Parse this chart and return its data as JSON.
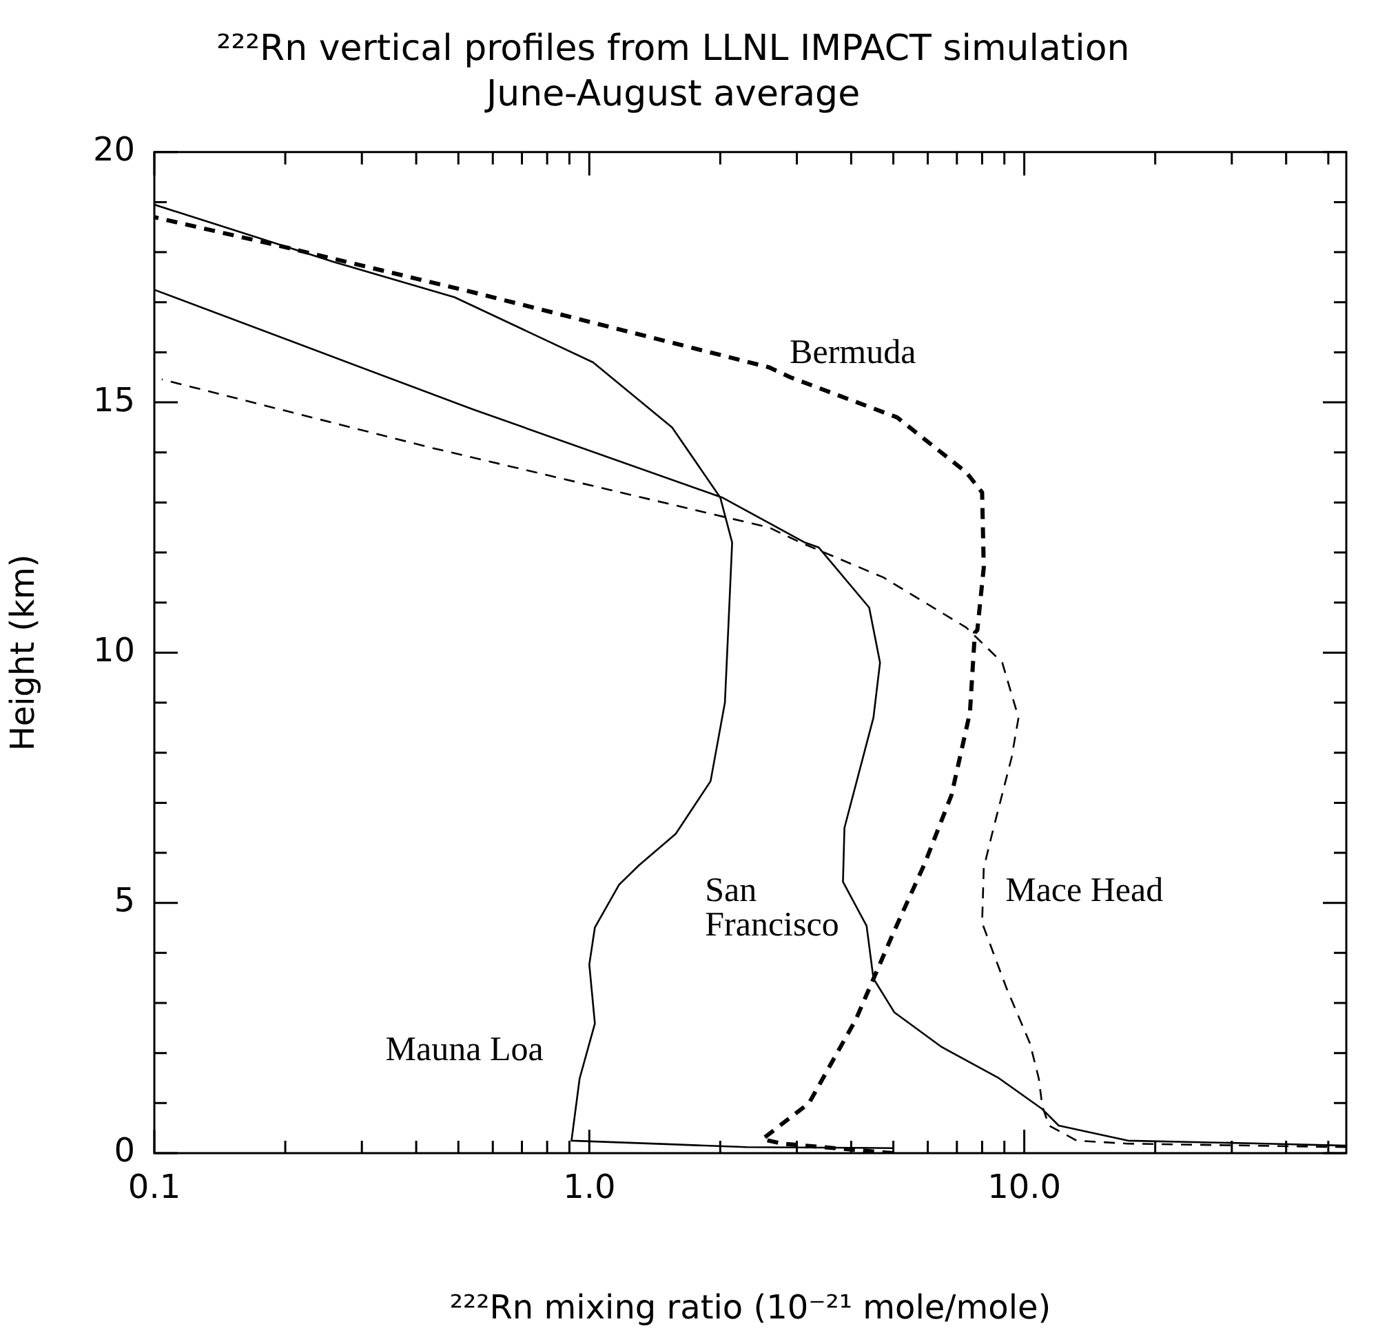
{
  "chart_data": {
    "type": "line",
    "title": "²²²Rn vertical profiles from LLNL IMPACT simulation",
    "subtitle": "June-August average",
    "xlabel": "²²²Rn mixing ratio (10⁻²¹ mole/mole)",
    "ylabel": "Height (km)",
    "log": "x",
    "legend": false,
    "marker": "none",
    "xlim": [
      0.1,
      55
    ],
    "ylim": [
      0,
      20
    ],
    "xticks": [
      {
        "value": 0.1,
        "label": "0.1"
      },
      {
        "value": 0.2,
        "label": null
      },
      {
        "value": 0.3,
        "label": null
      },
      {
        "value": 0.4,
        "label": null
      },
      {
        "value": 0.5,
        "label": null
      },
      {
        "value": 0.6,
        "label": null
      },
      {
        "value": 0.7,
        "label": null
      },
      {
        "value": 0.8,
        "label": null
      },
      {
        "value": 0.9,
        "label": null
      },
      {
        "value": 1,
        "label": "1.0"
      },
      {
        "value": 2,
        "label": null
      },
      {
        "value": 3,
        "label": null
      },
      {
        "value": 4,
        "label": null
      },
      {
        "value": 5,
        "label": null
      },
      {
        "value": 6,
        "label": null
      },
      {
        "value": 7,
        "label": null
      },
      {
        "value": 8,
        "label": null
      },
      {
        "value": 9,
        "label": null
      },
      {
        "value": 10,
        "label": "10.0"
      },
      {
        "value": 20,
        "label": null
      },
      {
        "value": 30,
        "label": null
      },
      {
        "value": 40,
        "label": null
      },
      {
        "value": 50,
        "label": null
      }
    ],
    "yticks": [
      0,
      {
        "value": 1,
        "label": null
      },
      {
        "value": 2,
        "label": null
      },
      {
        "value": 3,
        "label": null
      },
      {
        "value": 4,
        "label": null
      },
      5,
      {
        "value": 6,
        "label": null
      },
      {
        "value": 7,
        "label": null
      },
      {
        "value": 8,
        "label": null
      },
      {
        "value": 9,
        "label": null
      },
      10,
      {
        "value": 11,
        "label": null
      },
      {
        "value": 12,
        "label": null
      },
      {
        "value": 13,
        "label": null
      },
      {
        "value": 14,
        "label": null
      },
      15,
      {
        "value": 16,
        "label": null
      },
      {
        "value": 17,
        "label": null
      },
      {
        "value": 18,
        "label": null
      },
      {
        "value": 19,
        "label": null
      },
      20
    ],
    "series": [
      {
        "name": "Mauna Loa",
        "color": "#000000",
        "line_style": "solid",
        "x": [
          5,
          2.3,
          1.5,
          0.91,
          0.95,
          1.03,
          1.0,
          1.03,
          1.17,
          1.3,
          1.58,
          1.9,
          2.05,
          2.09,
          2.13,
          2.0,
          1.55,
          1.02,
          0.49,
          0.26,
          0.1
        ],
        "values": [
          0.1,
          0.12,
          0.18,
          0.25,
          1.49,
          2.59,
          3.77,
          4.51,
          5.36,
          5.75,
          6.38,
          7.43,
          9.0,
          10.6,
          12.2,
          13.1,
          14.5,
          15.8,
          17.1,
          17.8,
          18.95
        ]
      },
      {
        "name": "San Francisco",
        "color": "#000000",
        "line_style": "solid",
        "x": [
          55,
          36,
          17.3,
          12.0,
          11.0,
          8.7,
          6.46,
          5.03,
          4.5,
          4.34,
          3.83,
          3.86,
          4.5,
          4.66,
          4.4,
          3.37,
          3.13,
          2.02,
          0.54,
          0.1
        ],
        "values": [
          0.15,
          0.19,
          0.25,
          0.55,
          0.88,
          1.51,
          2.12,
          2.81,
          3.49,
          4.54,
          5.42,
          6.5,
          8.7,
          9.8,
          10.9,
          12.1,
          12.2,
          13.1,
          14.86,
          17.25
        ]
      },
      {
        "name": "Mace Head",
        "color": "#000000",
        "line_style": "dashed",
        "x": [
          55,
          17.3,
          13.2,
          11.4,
          11.0,
          10.8,
          10.3,
          9.1,
          8.0,
          8.07,
          8.5,
          9.35,
          9.7,
          8.9,
          7.36,
          4.75,
          3.06,
          2.59,
          0.43,
          0.104
        ],
        "values": [
          0.12,
          0.19,
          0.25,
          0.55,
          0.94,
          1.49,
          2.2,
          3.3,
          4.6,
          5.7,
          6.5,
          7.9,
          8.7,
          9.8,
          10.5,
          11.5,
          12.2,
          12.5,
          14.1,
          15.46
        ]
      },
      {
        "name": "Bermuda",
        "color": "#000000",
        "line_style": "dashed",
        "x": [
          5.0,
          2.77,
          2.5,
          3.2,
          4.1,
          5.0,
          5.9,
          6.8,
          7.5,
          7.7,
          7.8,
          8.07,
          8.0,
          7.36,
          5.1,
          2.9,
          2.59,
          0.54,
          0.2,
          0.1
        ],
        "values": [
          0.0,
          0.19,
          0.28,
          1.0,
          2.67,
          4.4,
          5.78,
          7.15,
          8.8,
          10.4,
          10.45,
          11.7,
          13.2,
          13.6,
          14.7,
          15.5,
          15.7,
          17.2,
          18.1,
          18.7
        ]
      }
    ]
  }
}
